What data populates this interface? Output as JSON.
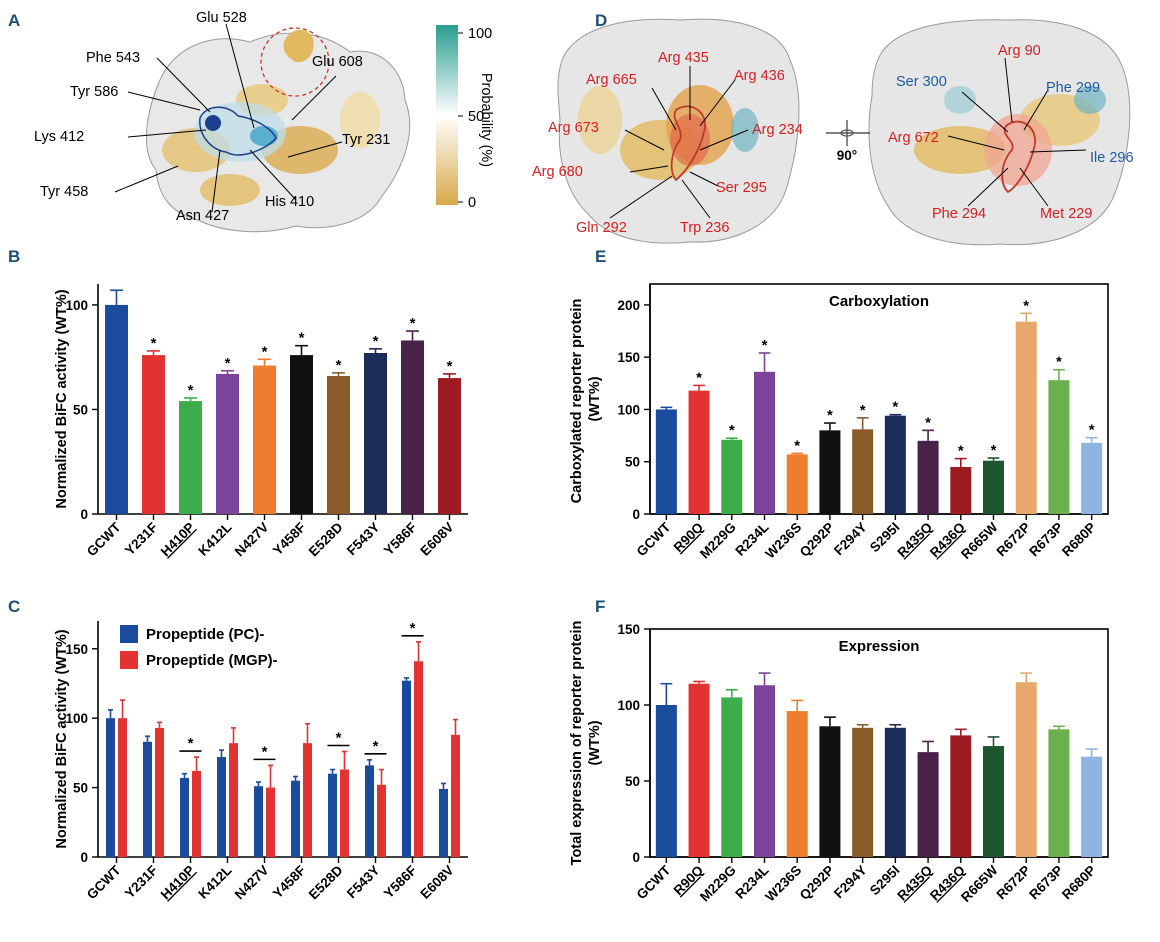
{
  "panel_letters": {
    "A": "A",
    "B": "B",
    "C": "C",
    "D": "D",
    "E": "E",
    "F": "F"
  },
  "colors": {
    "blue": "#1a4b9c",
    "red": "#e23232",
    "green": "#3cad4a",
    "purple": "#7b449a",
    "orange": "#ef7d2d",
    "black": "#111111",
    "brown": "#8b5a2b",
    "navy": "#1c2c5a",
    "plum": "#4a2148",
    "maroon": "#9c1c22",
    "dkgreen": "#1e5630",
    "peach": "#e8a86c",
    "lgreen": "#6ab04c",
    "lblue": "#8db4e2",
    "label_red": "#d62020",
    "label_blue": "#1f5aa6",
    "panel_letter": "#1f4e79"
  },
  "panel_a": {
    "residues": [
      "Phe 543",
      "Glu 528",
      "Glu 608",
      "Tyr 586",
      "Lys 412",
      "Tyr 231",
      "Tyr 458",
      "Asn 427",
      "His 410"
    ],
    "colorbar": {
      "title": "Probability (%)",
      "ticks": [
        "100",
        "50",
        "0"
      ]
    }
  },
  "panel_d": {
    "left_red": [
      "Arg 435",
      "Arg 665",
      "Arg 436",
      "Arg 673",
      "Arg 234",
      "Arg 680",
      "Ser 295",
      "Gln 292",
      "Trp 236"
    ],
    "right_red": [
      "Arg 90",
      "Arg 672",
      "Phe 294",
      "Met 229"
    ],
    "right_blue": [
      "Ser 300",
      "Phe 299",
      "Ile 296"
    ],
    "rotation": "90°"
  },
  "chart_data": [
    {
      "panel": "B",
      "type": "bar",
      "title": "",
      "ylabel": "Normalized BiFC activity (WT%)",
      "ylim": [
        0,
        110
      ],
      "yticks": [
        0,
        50,
        100
      ],
      "categories": [
        "GCWT",
        "Y231F",
        "H410P",
        "K412L",
        "N427V",
        "Y458F",
        "E528D",
        "F543Y",
        "Y586F",
        "E608V"
      ],
      "underlined": [
        "H410P"
      ],
      "values": [
        100,
        76,
        54,
        67,
        71,
        76,
        66,
        77,
        83,
        65
      ],
      "errors": [
        7,
        2,
        1.5,
        1.5,
        3,
        4.5,
        1.5,
        2,
        4.5,
        2
      ],
      "significant": [
        false,
        true,
        true,
        true,
        true,
        true,
        true,
        true,
        true,
        true
      ],
      "bar_colors": [
        "#1a4b9c",
        "#e23232",
        "#3cad4a",
        "#7b449a",
        "#ef7d2d",
        "#111111",
        "#8b5a2b",
        "#1c2c5a",
        "#4a2148",
        "#9c1c22"
      ]
    },
    {
      "panel": "C",
      "type": "bar",
      "title": "",
      "ylabel": "Normalized BiFC activity (WT%)",
      "ylim": [
        0,
        170
      ],
      "yticks": [
        0,
        50,
        100,
        150
      ],
      "categories": [
        "GCWT",
        "Y231F",
        "H410P",
        "K412L",
        "N427V",
        "Y458F",
        "E528D",
        "F543Y",
        "Y586F",
        "E608V"
      ],
      "underlined": [
        "H410P"
      ],
      "series": [
        {
          "name": "Propeptide (PC)-",
          "color": "#1a4b9c",
          "values": [
            100,
            83,
            57,
            72,
            51,
            55,
            60,
            66,
            127,
            49
          ],
          "errors": [
            6,
            4,
            3,
            5,
            3,
            3,
            3,
            4,
            2,
            4
          ]
        },
        {
          "name": "Propeptide (MGP)-",
          "color": "#e23232",
          "values": [
            100,
            93,
            62,
            82,
            50,
            82,
            63,
            52,
            141,
            88
          ],
          "errors": [
            13,
            4,
            10,
            11,
            16,
            14,
            13,
            11,
            14,
            11
          ]
        }
      ],
      "significant": [
        false,
        false,
        true,
        false,
        true,
        false,
        true,
        true,
        true,
        false
      ]
    },
    {
      "panel": "E",
      "type": "bar",
      "title": "Carboxylation",
      "ylabel": "Carboxylated reporter protein (WT%)",
      "ylim": [
        0,
        220
      ],
      "yticks": [
        0,
        50,
        100,
        150,
        200
      ],
      "categories": [
        "GCWT",
        "R90Q",
        "M229G",
        "R234L",
        "W236S",
        "Q292P",
        "F294Y",
        "S295I",
        "R435Q",
        "R436Q",
        "R665W",
        "R672P",
        "R673P",
        "R680P"
      ],
      "underlined": [
        "R90Q",
        "R435Q",
        "R436Q"
      ],
      "values": [
        100,
        118,
        71,
        136,
        57,
        80,
        81,
        94,
        70,
        45,
        51,
        184,
        128,
        68
      ],
      "errors": [
        2,
        5,
        1.5,
        18,
        1,
        7,
        11,
        1,
        10,
        8,
        2.5,
        8,
        10,
        5
      ],
      "significant": [
        false,
        true,
        true,
        true,
        true,
        true,
        true,
        true,
        true,
        true,
        true,
        true,
        true,
        true
      ],
      "bar_colors": [
        "#1a4b9c",
        "#e23232",
        "#3cad4a",
        "#7b449a",
        "#ef7d2d",
        "#111111",
        "#8b5a2b",
        "#1c2c5a",
        "#4a2148",
        "#9c1c22",
        "#1e5630",
        "#e8a86c",
        "#6ab04c",
        "#8db4e2"
      ]
    },
    {
      "panel": "F",
      "type": "bar",
      "title": "Expression",
      "ylabel": "Total expression of reporter protein (WT%)",
      "ylim": [
        0,
        150
      ],
      "yticks": [
        0,
        50,
        100,
        150
      ],
      "categories": [
        "GCWT",
        "R90Q",
        "M229G",
        "R234L",
        "W236S",
        "Q292P",
        "F294Y",
        "S295I",
        "R435Q",
        "R436Q",
        "R665W",
        "R672P",
        "R673P",
        "R680P"
      ],
      "underlined": [
        "R90Q",
        "R435Q",
        "R436Q"
      ],
      "values": [
        100,
        114,
        105,
        113,
        96,
        86,
        85,
        85,
        69,
        80,
        73,
        115,
        84,
        66
      ],
      "errors": [
        14,
        1.5,
        5,
        8,
        7,
        6,
        2,
        2,
        7,
        4,
        6,
        6,
        2,
        5
      ],
      "significant": [
        false,
        false,
        false,
        false,
        false,
        false,
        false,
        false,
        false,
        false,
        false,
        false,
        false,
        false
      ],
      "bar_colors": [
        "#1a4b9c",
        "#e23232",
        "#3cad4a",
        "#7b449a",
        "#ef7d2d",
        "#111111",
        "#8b5a2b",
        "#1c2c5a",
        "#4a2148",
        "#9c1c22",
        "#1e5630",
        "#e8a86c",
        "#6ab04c",
        "#8db4e2"
      ]
    }
  ]
}
